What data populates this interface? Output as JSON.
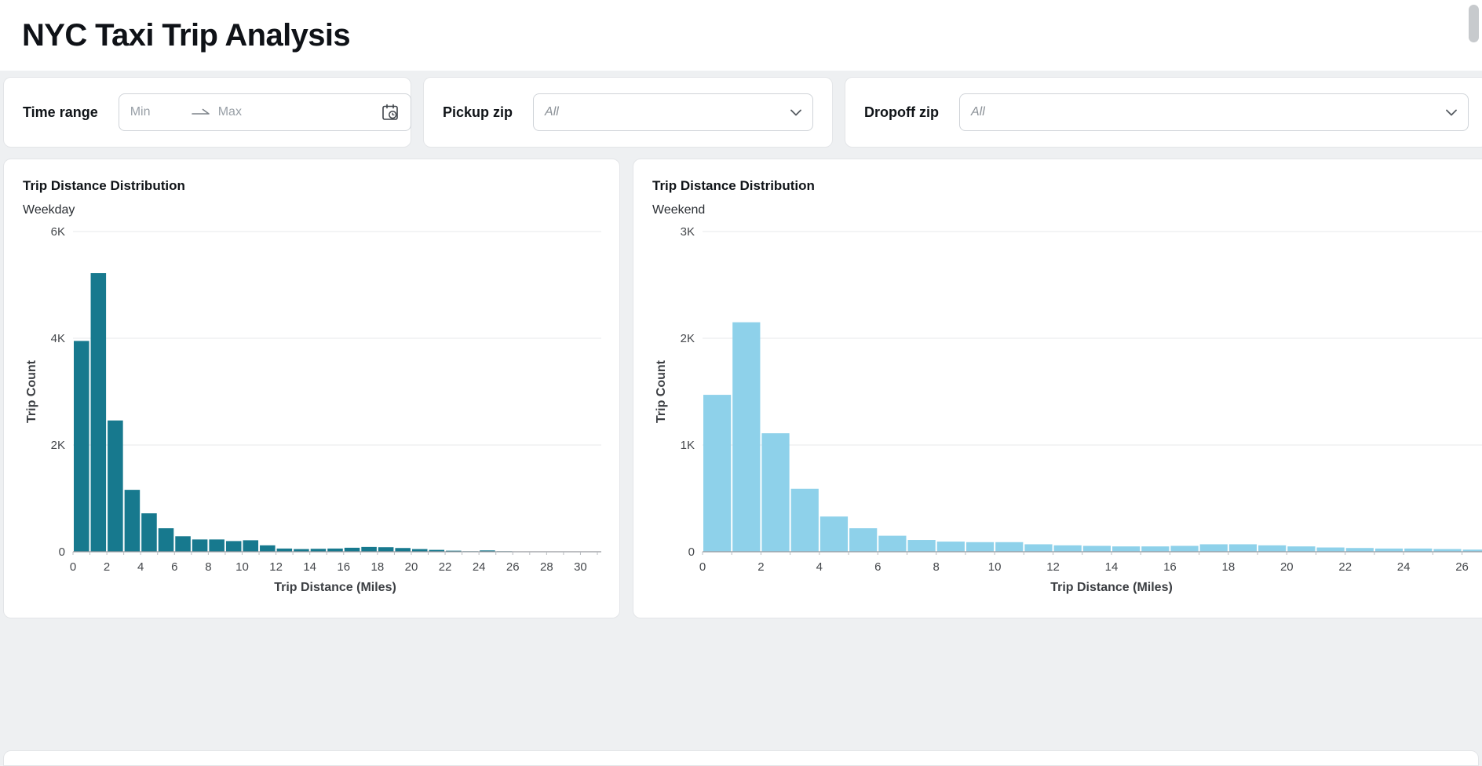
{
  "header": {
    "title": "NYC Taxi Trip Analysis"
  },
  "filters": {
    "time_range": {
      "label": "Time range",
      "min_placeholder": "Min",
      "max_placeholder": "Max"
    },
    "pickup_zip": {
      "label": "Pickup zip",
      "value": "All"
    },
    "dropoff_zip": {
      "label": "Dropoff zip",
      "value": "All"
    }
  },
  "icons": {
    "time_range_arrow": "arrow-right-icon",
    "time_range_calendar": "calendar-clock-icon",
    "select_chevron": "chevron-down-icon"
  },
  "colors": {
    "page_background": "#eef0f2",
    "card_background": "#ffffff",
    "weekday_bar": "#17798E",
    "weekend_bar": "#8ED1EA"
  },
  "chart_data": [
    {
      "type": "bar",
      "title": "Trip Distance Distribution",
      "subtitle": "Weekday",
      "xlabel": "Trip Distance (Miles)",
      "ylabel": "Trip Count",
      "bar_color": "#17798E",
      "bin_width": 1,
      "x_bin_start": 0,
      "x_domain": [
        0,
        31
      ],
      "x_tick_step": 2,
      "x_tick_max": 30,
      "ylim": [
        0,
        6000
      ],
      "yticks": [
        {
          "value": 0,
          "label": "0"
        },
        {
          "value": 2000,
          "label": "2K"
        },
        {
          "value": 4000,
          "label": "4K"
        },
        {
          "value": 6000,
          "label": "6K"
        }
      ],
      "values": [
        3950,
        5220,
        2460,
        1160,
        720,
        440,
        290,
        230,
        230,
        200,
        215,
        120,
        60,
        50,
        55,
        60,
        75,
        90,
        85,
        70,
        50,
        35,
        20,
        10,
        25,
        10,
        5,
        5,
        5,
        3,
        3
      ],
      "grid": true,
      "legend": "none"
    },
    {
      "type": "bar",
      "title": "Trip Distance Distribution",
      "subtitle": "Weekend",
      "xlabel": "Trip Distance (Miles)",
      "ylabel": "Trip Count",
      "bar_color": "#8ED1EA",
      "bin_width": 1,
      "x_bin_start": 0,
      "x_domain": [
        0,
        28
      ],
      "x_tick_step": 2,
      "x_tick_max": 28,
      "ylim": [
        0,
        3000
      ],
      "yticks": [
        {
          "value": 0,
          "label": "0"
        },
        {
          "value": 1000,
          "label": "1K"
        },
        {
          "value": 2000,
          "label": "2K"
        },
        {
          "value": 3000,
          "label": "3K"
        }
      ],
      "values": [
        1470,
        2150,
        1110,
        590,
        330,
        220,
        150,
        110,
        95,
        90,
        90,
        70,
        60,
        55,
        50,
        50,
        55,
        70,
        70,
        60,
        50,
        40,
        35,
        30,
        30,
        25,
        20,
        15
      ],
      "grid": true,
      "legend": "none"
    }
  ]
}
